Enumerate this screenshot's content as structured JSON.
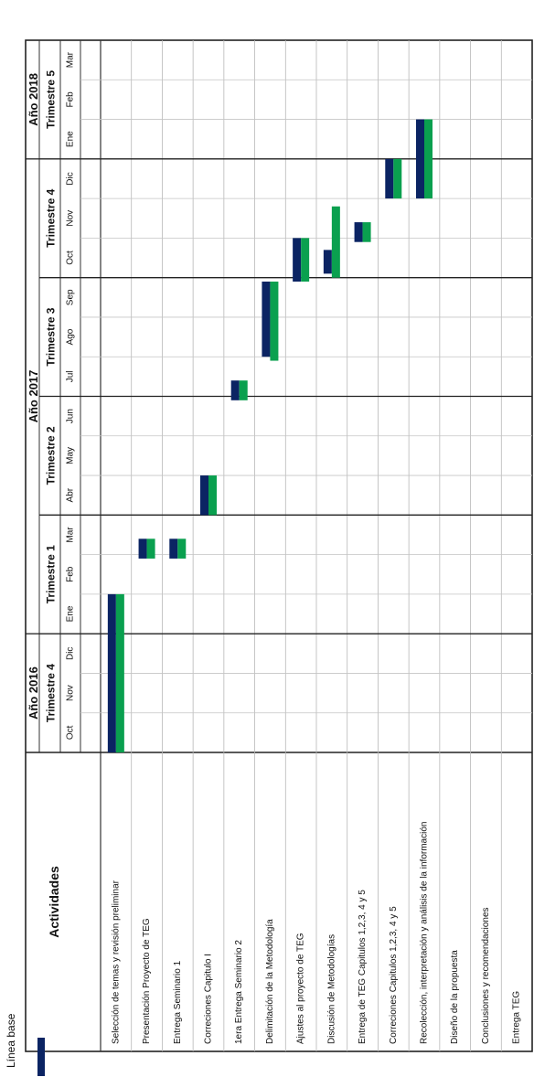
{
  "chart_data": {
    "type": "gantt",
    "title": "",
    "activities_header": "Actividades",
    "years": [
      {
        "label": "Año 2016",
        "start_month": 0,
        "end_month": 3
      },
      {
        "label": "Año 2017",
        "start_month": 3,
        "end_month": 15
      },
      {
        "label": "Año 2018",
        "start_month": 15,
        "end_month": 18
      }
    ],
    "quarters": [
      {
        "label": "Trimestre 4",
        "start_month": 0,
        "end_month": 3
      },
      {
        "label": "Trimestre 1",
        "start_month": 3,
        "end_month": 6
      },
      {
        "label": "Trimestre 2",
        "start_month": 6,
        "end_month": 9
      },
      {
        "label": "Trimestre 3",
        "start_month": 9,
        "end_month": 12
      },
      {
        "label": "Trimestre 4",
        "start_month": 12,
        "end_month": 15
      },
      {
        "label": "Trimestre 5",
        "start_month": 15,
        "end_month": 18
      }
    ],
    "months": [
      "Oct",
      "Nov",
      "Dic",
      "Ene",
      "Feb",
      "Mar",
      "Abr",
      "May",
      "Jun",
      "Jul",
      "Ago",
      "Sep",
      "Oct",
      "Nov",
      "Dic",
      "Ene",
      "Feb",
      "Mar"
    ],
    "activities": [
      "Selección de temas y revisión preliminar",
      "Presentación Proyecto de TEG",
      "Entrega Seminario 1",
      "Correciones Capitulo I",
      "1era Entrega Seminario 2",
      "Delimitación de la Metodología",
      "Ajustes al proyecto de TEG",
      "Discusión de Metodologías",
      "Entrega de TEG Capitulos 1,2,3, 4 y 5",
      "Correciones Capitulos 1,2,3, 4 y 5",
      "Recolección, interpretación y análisis de la información",
      "Diseño de la propuesta",
      "Conclusiones y recomendaciones",
      "Entrega TEG"
    ],
    "series": [
      {
        "name": "Línea base",
        "color": "#0b2463",
        "bars": [
          [
            0.0,
            4.0
          ],
          [
            4.9,
            5.4
          ],
          [
            4.9,
            5.4
          ],
          [
            6.0,
            7.0
          ],
          [
            8.9,
            9.4
          ],
          [
            10.0,
            11.9
          ],
          [
            11.9,
            13.0
          ],
          [
            12.1,
            12.7
          ],
          [
            12.9,
            13.4
          ],
          [
            14.0,
            15.0
          ],
          [
            14.0,
            16.0
          ],
          [
            16.0,
            16.0
          ],
          [
            16.0,
            16.0
          ],
          [
            16.0,
            16.0
          ]
        ]
      },
      {
        "name": "",
        "color": "#0aa04f",
        "bars": [
          [
            0.0,
            4.0
          ],
          [
            4.9,
            5.4
          ],
          [
            4.9,
            5.4
          ],
          [
            6.0,
            7.0
          ],
          [
            8.9,
            9.4
          ],
          [
            9.9,
            11.9
          ],
          [
            11.9,
            13.0
          ],
          [
            12.0,
            13.8
          ],
          [
            12.9,
            13.4
          ],
          [
            14.0,
            15.0
          ],
          [
            14.0,
            16.0
          ],
          [
            16.0,
            16.0
          ],
          [
            16.0,
            16.0
          ],
          [
            16.0,
            16.0
          ]
        ]
      }
    ],
    "legend": {
      "label": "Línea base",
      "placement": "bottom-left"
    }
  }
}
